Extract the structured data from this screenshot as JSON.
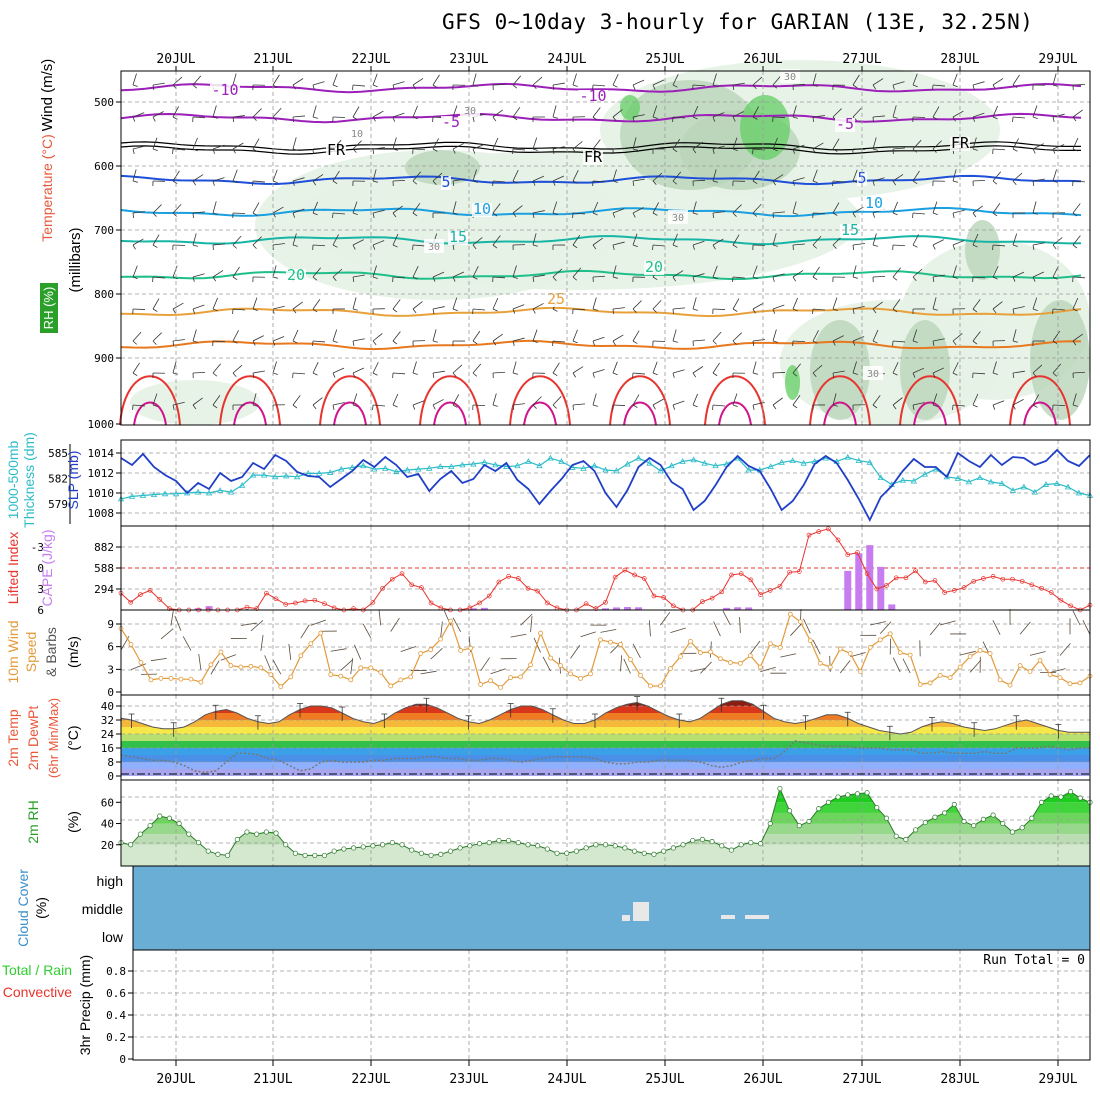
{
  "title": "GFS 0~10day 3-hourly for GARIAN (13E, 32.25N)",
  "dates": [
    "20JUL",
    "21JUL",
    "22JUL",
    "23JUL",
    "24JUL",
    "25JUL",
    "26JUL",
    "27JUL",
    "28JUL",
    "29JUL"
  ],
  "colors": {
    "purple": "#9b1fb8",
    "black": "#000000",
    "blue": "#1e4fd8",
    "lightblue": "#1a9fe0",
    "teal": "#16b5a6",
    "green20": "#1fbf8a",
    "orange25": "#e8a13a",
    "orange": "#e8781e",
    "red": "#e8332e",
    "magenta": "#d0148c",
    "rhlight": "#e6f2e6",
    "rhmid": "#b9d4b9",
    "rhdark": "#8aa38a",
    "rhbright": "#6ad06a",
    "slp": "#1f3fc8",
    "thick": "#2bbcc8",
    "li": "#e8332e",
    "cape": "#c77cf0",
    "wind": "#e39a3a",
    "cloud": "#6aaed6",
    "rh2m": "#2fcf2f"
  },
  "panel_labels": {
    "upper": {
      "rh": "RH (%)",
      "temp": "Temperature (°C)",
      "wind": "Wind (m/s)",
      "unit": "(millibars)"
    },
    "thick": {
      "a": "1000-500mb",
      "b": "Thickness (dm)",
      "c": "SLP (mb)"
    },
    "li": {
      "a": "Lifted Index",
      "b": "CAPE (J/kg)"
    },
    "wind10": {
      "a": "10m Wind",
      "b": "Speed",
      "c": "& Barbs",
      "d": "(m/s)"
    },
    "temp2m": {
      "a": "2m Temp",
      "b": "2m DewPt",
      "c": "(6hr Min/Max)",
      "d": "(°C)"
    },
    "rh2m": {
      "a": "2m RH",
      "b": "(%)"
    },
    "cloud": {
      "a": "Cloud Cover",
      "b": "(%)",
      "levels": [
        "high",
        "middle",
        "low"
      ]
    },
    "precip": {
      "a": "Total / Rain",
      "b": "Convective",
      "c": "3hr Precip (mm)",
      "run_total": "Run Total = 0"
    }
  },
  "upper_air": {
    "pressure_ticks": [
      "500",
      "600",
      "700",
      "800",
      "900",
      "1000"
    ],
    "contour_labels": [
      "-10",
      "-10",
      "-5",
      "-5",
      "FR",
      "FR",
      "FR",
      "5",
      "5",
      "10",
      "10",
      "15",
      "15",
      "20",
      "20",
      "25",
      "30",
      "30",
      "30",
      "30",
      "10",
      "30"
    ]
  },
  "chart_data": [
    {
      "type": "line",
      "title": "SLP / 1000-500mb Thickness",
      "y_left_ticks": [
        579,
        582,
        585
      ],
      "y_right_ticks": [
        1008,
        1010,
        1012,
        1014
      ],
      "series": [
        {
          "name": "SLP (mb)",
          "values": [
            1013.5,
            1012.8,
            1013.9,
            1012.6,
            1011.8,
            1011.2,
            1010.0,
            1011.0,
            1010.4,
            1012.0,
            1011.2,
            1011.6,
            1013.0,
            1012.4,
            1013.8,
            1013.2,
            1012.1,
            1011.7,
            1011.6,
            1010.6,
            1011.4,
            1012.2,
            1013.3,
            1012.6,
            1013.6,
            1012.8,
            1011.6,
            1011.9,
            1010.2,
            1011.4,
            1012.2,
            1011.0,
            1011.4,
            1012.8,
            1012.2,
            1013.0,
            1011.3,
            1010.4,
            1008.9,
            1010.2,
            1011.4,
            1012.8,
            1013.2,
            1012.2,
            1010.0,
            1008.6,
            1010.3,
            1012.6,
            1013.5,
            1012.8,
            1011.1,
            1010.4,
            1008.3,
            1009.2,
            1010.8,
            1012.6,
            1013.7,
            1012.7,
            1012.2,
            1010.4,
            1008.3,
            1009.2,
            1010.8,
            1012.9,
            1013.7,
            1013.0,
            1011.3,
            1009.4,
            1007.3,
            1009.6,
            1010.7,
            1012.2,
            1013.4,
            1012.6,
            1012.6,
            1011.6,
            1014.0,
            1013.2,
            1012.6,
            1013.8,
            1012.8,
            1013.6,
            1013.5,
            1012.8,
            1013.2,
            1014.3,
            1013.2,
            1012.7,
            1013.8
          ]
        },
        {
          "name": "Thickness (dm)",
          "values": [
            579.6,
            579.9,
            580.0,
            580.1,
            580.2,
            580.2,
            580.3,
            580.4,
            580.3,
            580.6,
            580.4,
            581.2,
            582.4,
            582.4,
            582.2,
            582.3,
            582.2,
            582.6,
            582.6,
            582.7,
            583.1,
            583.3,
            583.5,
            583.1,
            583.2,
            582.8,
            583.0,
            583.1,
            583.2,
            583.4,
            583.4,
            583.6,
            583.7,
            583.9,
            583.6,
            583.4,
            583.5,
            584.0,
            583.5,
            584.4,
            584.0,
            583.3,
            583.2,
            583.5,
            583.0,
            582.9,
            583.7,
            584.4,
            583.8,
            582.9,
            583.5,
            584.0,
            584.2,
            583.8,
            583.5,
            583.7,
            584.4,
            583.0,
            583.0,
            583.4,
            583.9,
            584.1,
            583.8,
            584.0,
            584.4,
            584.0,
            584.5,
            584.1,
            583.9,
            582.1,
            581.3,
            581.8,
            581.7,
            582.5,
            583.1,
            582.2,
            582.0,
            581.6,
            582.1,
            581.6,
            581.4,
            580.6,
            581.0,
            580.4,
            581.3,
            581.4,
            581.0,
            580.3,
            580.0
          ]
        }
      ]
    },
    {
      "type": "bar",
      "title": "Lifted Index / CAPE",
      "li_ticks": [
        -3,
        0,
        3,
        6
      ],
      "cape_ticks": [
        294,
        588,
        882
      ],
      "series": [
        {
          "name": "Lifted Index",
          "values": [
            3.6,
            4.9,
            3.8,
            3.2,
            4.5,
            5.8,
            6.8,
            7.0,
            6.8,
            6.9,
            6.8,
            6.9,
            6.0,
            5.6,
            5.8,
            3.6,
            4.4,
            5.2,
            5.0,
            4.7,
            4.6,
            5.1,
            5.7,
            6.2,
            5.8,
            6.1,
            4.9,
            2.9,
            1.6,
            0.8,
            2.4,
            2.8,
            5.0,
            5.7,
            6.5,
            7.0,
            5.7,
            5.0,
            4.0,
            2.0,
            1.2,
            1.5,
            2.9,
            3.3,
            5.0,
            5.7,
            7.0,
            6.0,
            5.1,
            5.8,
            4.9,
            1.3,
            0.3,
            1.0,
            1.5,
            4.0,
            4.2,
            5.4,
            6.5,
            6.4,
            4.8,
            4.3,
            3.4,
            1.0,
            0.8,
            1.7,
            3.8,
            3.2,
            2.6,
            0.6,
            0.5,
            -4.7,
            -5.2,
            -5.6,
            -4.0,
            -1.9,
            -2.2,
            0.8,
            3.0,
            2.5,
            1.4,
            1.4,
            0.4,
            2.0,
            1.8,
            3.5,
            3.2,
            2.8,
            1.9,
            1.5,
            1.2,
            1.6,
            1.6,
            1.9,
            2.4,
            2.9,
            3.5,
            4.6,
            5.4,
            6.0,
            5.3
          ]
        },
        {
          "name": "CAPE (J/kg)",
          "values": [
            0,
            0,
            0,
            0,
            0,
            0,
            0,
            24,
            54,
            0,
            0,
            0,
            0,
            0,
            0,
            0,
            0,
            0,
            0,
            0,
            0,
            0,
            0,
            0,
            0,
            0,
            0,
            0,
            0,
            0,
            0,
            0,
            24,
            30,
            0,
            0,
            0,
            0,
            0,
            0,
            0,
            0,
            0,
            6,
            24,
            36,
            42,
            38,
            0,
            0,
            0,
            0,
            0,
            0,
            0,
            30,
            38,
            36,
            0,
            0,
            0,
            0,
            0,
            0,
            0,
            0,
            548,
            794,
            908,
            604,
            78,
            0,
            0,
            0,
            0,
            0,
            0,
            0,
            0,
            0,
            0,
            0,
            0,
            0,
            0,
            0,
            0,
            0,
            0
          ]
        }
      ]
    },
    {
      "type": "line",
      "title": "10m Wind Speed",
      "ylabel": "(m/s)",
      "yticks": [
        0,
        3,
        6,
        9
      ],
      "series": [
        {
          "name": "Speed (m/s)",
          "values": [
            8.4,
            6.3,
            3.9,
            1.6,
            1.8,
            1.8,
            1.7,
            1.7,
            1.3,
            3.6,
            5.3,
            3.5,
            3.3,
            3.4,
            3.2,
            2.3,
            0.7,
            2.0,
            4.8,
            6.4,
            7.8,
            2.3,
            2.1,
            1.6,
            3.2,
            3.2,
            2.6,
            0.8,
            1.6,
            2.0,
            5.1,
            5.6,
            7.0,
            9.4,
            5.5,
            5.8,
            1.0,
            1.5,
            0.6,
            1.9,
            2.0,
            3.6,
            7.8,
            4.5,
            3.5,
            2.4,
            1.8,
            2.4,
            6.9,
            6.6,
            6.3,
            4.3,
            2.2,
            0.8,
            0.8,
            3.1,
            4.7,
            6.7,
            5.2,
            5.3,
            4.4,
            3.9,
            3.8,
            4.8,
            3.3,
            6.4,
            5.9,
            10.3,
            9.3,
            6.8,
            3.8,
            3.3,
            5.7,
            5.1,
            2.7,
            5.9,
            6.9,
            7.7,
            5.2,
            4.9,
            1.0,
            1.2,
            2.2,
            1.9,
            3.3,
            4.7,
            5.5,
            5.1,
            1.6,
            0.9,
            3.5,
            2.7,
            4.2,
            2.3,
            1.9,
            1.1,
            1.2,
            2.1
          ]
        }
      ]
    },
    {
      "type": "area",
      "title": "2m Temp / DewPt",
      "ylabel": "(°C)",
      "yticks": [
        0,
        8,
        16,
        24,
        32,
        40
      ],
      "series": [
        {
          "name": "2m Temp",
          "values": [
            33,
            32,
            30,
            28,
            27,
            27,
            28,
            31,
            35,
            37,
            38,
            36,
            33,
            31,
            30,
            31,
            35,
            38,
            40,
            40,
            39,
            36,
            33,
            31,
            30,
            32,
            36,
            39,
            41,
            41,
            39,
            36,
            33,
            31,
            30,
            32,
            35,
            38,
            40,
            40,
            38,
            35,
            32,
            30,
            30,
            32,
            36,
            39,
            41,
            42,
            40,
            37,
            34,
            32,
            31,
            33,
            37,
            41,
            43,
            43,
            41,
            37,
            33,
            31,
            30,
            31,
            33,
            35,
            35,
            33,
            30,
            28,
            26,
            25,
            24,
            25,
            28,
            30,
            31,
            30,
            28,
            27,
            26,
            27,
            29,
            31,
            32,
            30,
            28,
            26,
            25,
            25,
            25
          ]
        },
        {
          "name": "2m DewPt",
          "values": [
            12,
            11,
            10,
            9,
            9,
            8,
            6,
            3,
            2,
            3,
            8,
            13,
            13,
            12,
            10,
            9,
            6,
            3,
            4,
            8,
            9,
            8,
            8,
            8,
            9,
            9,
            10,
            10,
            10,
            11,
            11,
            10,
            10,
            9,
            9,
            10,
            10,
            9,
            8,
            9,
            10,
            11,
            11,
            11,
            11,
            10,
            8,
            7,
            7,
            8,
            8,
            9,
            9,
            9,
            9,
            8,
            6,
            5,
            6,
            8,
            9,
            10,
            10,
            14,
            20,
            19,
            18,
            17,
            17,
            17,
            16,
            16,
            16,
            15,
            15,
            15,
            13,
            13,
            14,
            13,
            13,
            13,
            14,
            13,
            13,
            16,
            16,
            16,
            17,
            16,
            15,
            16,
            16
          ]
        }
      ]
    },
    {
      "type": "area",
      "title": "2m RH",
      "ylabel": "(%)",
      "yticks": [
        20,
        40,
        60
      ],
      "series": [
        {
          "name": "2m RH",
          "values": [
            22,
            20,
            30,
            38,
            47,
            45,
            40,
            30,
            22,
            14,
            11,
            10,
            25,
            32,
            30,
            32,
            31,
            20,
            12,
            10,
            10,
            10,
            14,
            16,
            17,
            18,
            19,
            20,
            22,
            20,
            15,
            12,
            10,
            11,
            14,
            17,
            19,
            21,
            22,
            24,
            24,
            22,
            20,
            19,
            16,
            12,
            12,
            14,
            17,
            20,
            20,
            19,
            17,
            14,
            12,
            11,
            14,
            17,
            20,
            24,
            25,
            23,
            19,
            15,
            20,
            22,
            21,
            40,
            73,
            52,
            38,
            42,
            54,
            60,
            65,
            67,
            68,
            69,
            55,
            45,
            28,
            25,
            34,
            41,
            46,
            50,
            58,
            42,
            38,
            44,
            48,
            40,
            32,
            36,
            45,
            60,
            66,
            65,
            70,
            64,
            60
          ]
        }
      ]
    },
    {
      "type": "bar",
      "title": "Cloud Cover",
      "series": [
        {
          "name": "middle",
          "values": [
            0,
            0,
            0,
            0,
            0,
            0,
            0,
            0,
            0,
            0,
            0,
            0,
            0,
            0,
            0,
            0,
            0,
            0,
            0,
            0,
            0,
            0,
            0,
            0,
            0,
            0,
            0,
            0,
            0,
            0,
            0,
            0,
            0,
            0,
            0,
            0,
            0,
            0,
            0,
            0,
            0,
            0,
            0,
            0,
            0,
            0,
            0,
            0,
            0,
            0,
            0,
            0,
            0,
            0,
            0,
            0,
            0,
            0,
            0,
            0,
            0,
            0,
            0,
            0,
            0,
            0,
            0,
            0,
            0,
            0,
            0,
            0,
            0,
            0,
            0,
            0,
            0,
            0,
            0,
            0,
            0,
            0,
            0,
            0,
            0,
            0,
            0,
            0,
            0,
            0,
            0,
            0,
            0,
            0,
            0
          ]
        }
      ]
    },
    {
      "type": "bar",
      "title": "3hr Precip",
      "ylabel": "3hr Precip (mm)",
      "yticks": [
        0,
        0.2,
        0.4,
        0.6,
        0.8
      ],
      "series": [
        {
          "name": "Total / Rain",
          "values": []
        },
        {
          "name": "Convective",
          "values": []
        }
      ]
    }
  ]
}
